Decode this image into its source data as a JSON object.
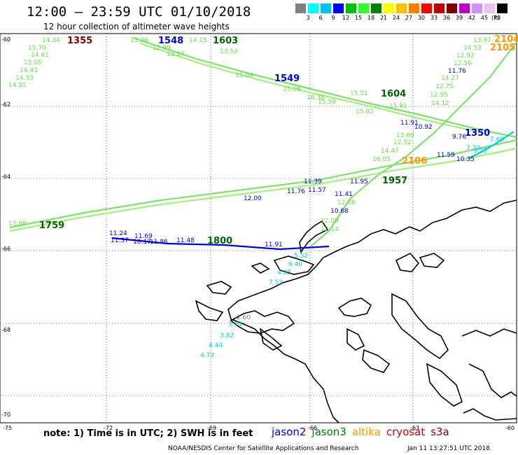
{
  "title": "12:00 – 23:59 UTC 01/10/2018",
  "subtitle": "12 hour collection of altimeter wave heights",
  "colorbar": {
    "colors": [
      "#808080",
      "#00ffff",
      "#00c0ff",
      "#0000ff",
      "#00c000",
      "#30ff30",
      "#008000",
      "#ffff00",
      "#ffc000",
      "#ff8000",
      "#ff0000",
      "#c00000",
      "#800000",
      "#c000c0",
      "#d090ff",
      "#f0c0f0",
      "#000000"
    ],
    "ticks": [
      "3",
      "6",
      "9",
      "12",
      "15",
      "18",
      "21",
      "24",
      "27",
      "30",
      "33",
      "36",
      "39",
      "42",
      "45",
      "70"
    ],
    "unit": "(ft)"
  },
  "axes": {
    "lat_labels": [
      "-60",
      "-62",
      "-64",
      "-66",
      "-68",
      "-70"
    ],
    "lon_labels": [
      "-75",
      "-72",
      "-69",
      "-66",
      "-63",
      "-60"
    ]
  },
  "note": "note:  1) Time is in UTC;  2) SWH is in feet",
  "legend": [
    {
      "name": "jason2",
      "color": "#0000ff"
    },
    {
      "name": "jason3",
      "color": "#008000"
    },
    {
      "name": "altika",
      "color": "#ff9900"
    },
    {
      "name": "cryosat",
      "color": "#cc0000"
    },
    {
      "name": "s3a",
      "color": "#800000"
    }
  ],
  "credit": "NOAA/NESDIS Center for Satellite Applications and Research",
  "timestamp": "Jan 11 13:27:51 UTC 2018",
  "pass_labels": [
    {
      "text": "1355",
      "color": "#800000"
    },
    {
      "text": "1548",
      "color": "#0000cc"
    },
    {
      "text": "1603",
      "color": "#006400"
    },
    {
      "text": "1549",
      "color": "#0000cc"
    },
    {
      "text": "1604",
      "color": "#006400"
    },
    {
      "text": "2104",
      "color": "#ff9900"
    },
    {
      "text": "2105",
      "color": "#ff9900"
    },
    {
      "text": "1350",
      "color": "#0000cc"
    },
    {
      "text": "2106",
      "color": "#ff9900"
    },
    {
      "text": "1957",
      "color": "#006400"
    },
    {
      "text": "1759",
      "color": "#006400"
    },
    {
      "text": "1800",
      "color": "#006400"
    }
  ],
  "observations": [
    {
      "v": "14.34",
      "c": "#66dd44"
    },
    {
      "v": "15.70",
      "c": "#66dd44"
    },
    {
      "v": "14.61",
      "c": "#66dd44"
    },
    {
      "v": "15.05",
      "c": "#66dd44"
    },
    {
      "v": "14.43",
      "c": "#66dd44"
    },
    {
      "v": "14.33",
      "c": "#66dd44"
    },
    {
      "v": "14.51",
      "c": "#66dd44"
    },
    {
      "v": "13.36",
      "c": "#66dd44"
    },
    {
      "v": "12.99",
      "c": "#66dd44"
    },
    {
      "v": "14.15",
      "c": "#66dd44"
    },
    {
      "v": "13.27",
      "c": "#66dd44"
    },
    {
      "v": "13.53",
      "c": "#66dd44"
    },
    {
      "v": "15.04",
      "c": "#66dd44"
    },
    {
      "v": "15.09",
      "c": "#66dd44"
    },
    {
      "v": "16.38",
      "c": "#66dd44"
    },
    {
      "v": "15.59",
      "c": "#66dd44"
    },
    {
      "v": "15.51",
      "c": "#66dd44"
    },
    {
      "v": "15.82",
      "c": "#66dd44"
    },
    {
      "v": "15.91",
      "c": "#66dd44"
    },
    {
      "v": "13.97",
      "c": "#66dd44"
    },
    {
      "v": "14.53",
      "c": "#66dd44"
    },
    {
      "v": "12.92",
      "c": "#66dd44"
    },
    {
      "v": "12.56",
      "c": "#66dd44"
    },
    {
      "v": "11.76",
      "c": "#0000cc"
    },
    {
      "v": "14.27",
      "c": "#66dd44"
    },
    {
      "v": "12.75",
      "c": "#66dd44"
    },
    {
      "v": "12.95",
      "c": "#66dd44"
    },
    {
      "v": "14.12",
      "c": "#66dd44"
    },
    {
      "v": "11.91",
      "c": "#0000cc"
    },
    {
      "v": "10.92",
      "c": "#0000cc"
    },
    {
      "v": "12.52",
      "c": "#66dd44"
    },
    {
      "v": "13.68",
      "c": "#66dd44"
    },
    {
      "v": "14.47",
      "c": "#66dd44"
    },
    {
      "v": "16.05",
      "c": "#66dd44"
    },
    {
      "v": "9.76",
      "c": "#0000cc"
    },
    {
      "v": "11.59",
      "c": "#0000cc"
    },
    {
      "v": "11.39",
      "c": "#0000cc"
    },
    {
      "v": "11.95",
      "c": "#0000cc"
    },
    {
      "v": "11.76",
      "c": "#0000cc"
    },
    {
      "v": "11.57",
      "c": "#0000cc"
    },
    {
      "v": "12.00",
      "c": "#0000cc"
    },
    {
      "v": "11.41",
      "c": "#0000cc"
    },
    {
      "v": "12.08",
      "c": "#66dd44"
    },
    {
      "v": "10.68",
      "c": "#0000cc"
    },
    {
      "v": "12.09",
      "c": "#66dd44"
    },
    {
      "v": "12.14",
      "c": "#66dd44"
    },
    {
      "v": "13.88",
      "c": "#66dd44"
    },
    {
      "v": "11.24",
      "c": "#0000cc"
    },
    {
      "v": "11.37",
      "c": "#0000cc"
    },
    {
      "v": "11.69",
      "c": "#0000cc"
    },
    {
      "v": "10.17",
      "c": "#0000cc"
    },
    {
      "v": "11.86",
      "c": "#0000cc"
    },
    {
      "v": "11.48",
      "c": "#0000cc"
    },
    {
      "v": "11.91",
      "c": "#0000cc"
    },
    {
      "v": "5.52",
      "c": "#00ccdd"
    },
    {
      "v": "6.40",
      "c": "#00ccdd"
    },
    {
      "v": "4.95",
      "c": "#00ccdd"
    },
    {
      "v": "7.52",
      "c": "#00ccdd"
    },
    {
      "v": "2.60",
      "c": "#808080"
    },
    {
      "v": "3.74",
      "c": "#00ccdd"
    },
    {
      "v": "3.82",
      "c": "#00ccdd"
    },
    {
      "v": "4.44",
      "c": "#00ccdd"
    },
    {
      "v": "4.73",
      "c": "#00ccdd"
    },
    {
      "v": "7.60",
      "c": "#00ccdd"
    },
    {
      "v": "7.73",
      "c": "#00ccdd"
    },
    {
      "v": "9.25",
      "c": "#00ccdd"
    },
    {
      "v": "10.35",
      "c": "#0000cc"
    }
  ]
}
